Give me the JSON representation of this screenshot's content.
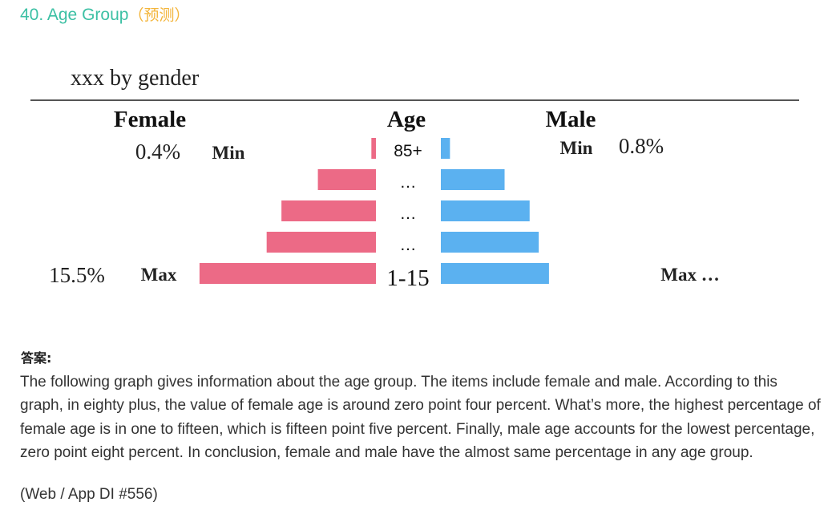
{
  "heading": {
    "title": "40. Age Group",
    "tag": "（预测）"
  },
  "chart_data": {
    "type": "bar",
    "title": "xxx by gender",
    "layout": "population-pyramid",
    "column_headers": {
      "female": "Female",
      "age": "Age",
      "male": "Male"
    },
    "categories": [
      "85+",
      "…",
      "…",
      "…",
      "1-15"
    ],
    "series": [
      {
        "name": "Female",
        "color": "#ec6a86",
        "values": [
          0.4,
          5.1,
          8.3,
          9.6,
          15.5
        ]
      },
      {
        "name": "Male",
        "color": "#5bb1f0",
        "values": [
          0.8,
          5.6,
          7.8,
          8.6,
          9.5
        ]
      }
    ],
    "annotations": {
      "female_min_value": "0.4%",
      "female_min_label": "Min",
      "female_max_value": "15.5%",
      "female_max_label": "Max",
      "male_min_label": "Min",
      "male_min_value": "0.8%",
      "male_max_label": "Max …"
    }
  },
  "answer": {
    "label": "答案:",
    "text": "The following graph gives information about the age group. The items include female and male. According to this graph, in eighty plus, the value of female age is around zero point four percent. What’s more, the highest percentage of female age is in one to fifteen, which is fifteen point five percent. Finally, male age accounts for the lowest percentage, zero point eight percent. In conclusion, female and male have the almost same percentage in any age group.",
    "source": "(Web / App DI #556)"
  }
}
